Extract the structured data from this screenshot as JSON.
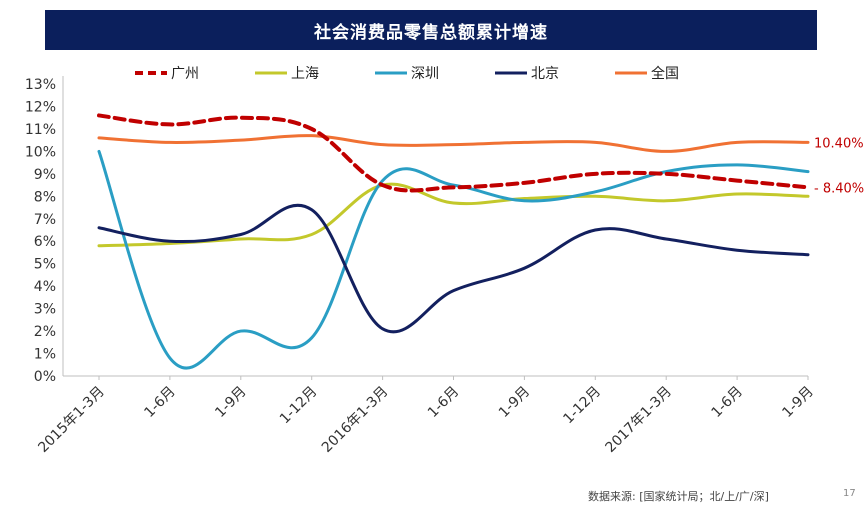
{
  "source": "数据来源: [国家统计局；北/上/广/深]",
  "page_number": "17",
  "chart_data": {
    "type": "line",
    "title": "社会消费品零售总额累计增速",
    "xlabel": "",
    "ylabel": "",
    "ylim": [
      0,
      13
    ],
    "yticks": [
      "0%",
      "1%",
      "2%",
      "3%",
      "4%",
      "5%",
      "6%",
      "7%",
      "8%",
      "9%",
      "10%",
      "11%",
      "12%",
      "13%"
    ],
    "grid": false,
    "legend_position": "top",
    "categories": [
      "2015年1-3月",
      "1-6月",
      "1-9月",
      "1-12月",
      "2016年1-3月",
      "1-6月",
      "1-9月",
      "1-12月",
      "2017年1-3月",
      "1-6月",
      "1-9月"
    ],
    "series": [
      {
        "name": "广州",
        "color": "#c00000",
        "dashed": true,
        "values": [
          11.6,
          11.2,
          11.5,
          11.0,
          8.5,
          8.4,
          8.6,
          9.0,
          9.0,
          8.7,
          8.4
        ],
        "end_label": "8.40%"
      },
      {
        "name": "上海",
        "color": "#c3c82b",
        "dashed": false,
        "values": [
          5.8,
          5.9,
          6.1,
          6.3,
          8.5,
          7.7,
          7.9,
          8.0,
          7.8,
          8.1,
          8.0
        ]
      },
      {
        "name": "深圳",
        "color": "#2a9ec4",
        "dashed": false,
        "values": [
          10.0,
          0.8,
          2.0,
          1.7,
          8.7,
          8.5,
          7.8,
          8.2,
          9.1,
          9.4,
          9.1
        ]
      },
      {
        "name": "北京",
        "color": "#13205f",
        "dashed": false,
        "values": [
          6.6,
          6.0,
          6.3,
          7.4,
          2.1,
          3.8,
          4.8,
          6.5,
          6.1,
          5.6,
          5.4
        ]
      },
      {
        "name": "全国",
        "color": "#f07133",
        "dashed": false,
        "values": [
          10.6,
          10.4,
          10.5,
          10.7,
          10.3,
          10.3,
          10.4,
          10.4,
          10.0,
          10.4,
          10.4
        ],
        "end_label": "10.40%"
      }
    ]
  }
}
